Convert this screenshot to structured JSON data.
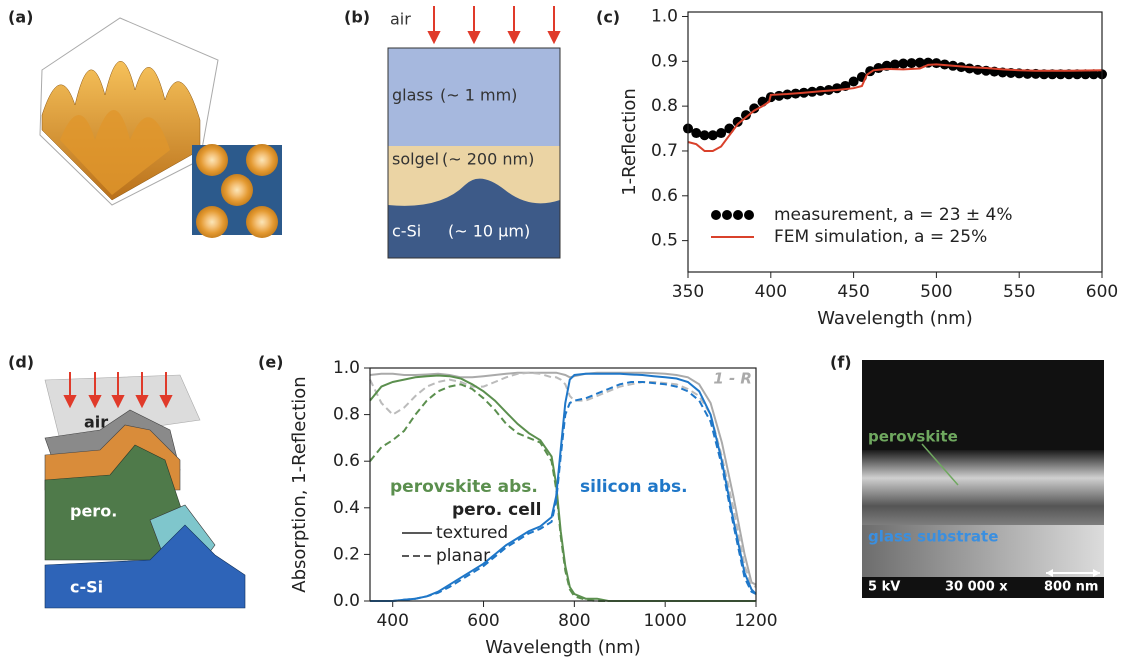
{
  "panel_labels": [
    "(a)",
    "(b)",
    "(c)",
    "(d)",
    "(e)",
    "(f)"
  ],
  "diagram_b": {
    "top_label": "air",
    "layers": [
      {
        "name": "glass",
        "thickness": "(~ 1 mm)"
      },
      {
        "name": "solgel",
        "thickness": "(~ 200 nm)"
      },
      {
        "name": "c-Si",
        "thickness": "(~ 10 µm)"
      }
    ]
  },
  "diagram_d": {
    "labels": [
      "air",
      "pero.",
      "c-Si"
    ]
  },
  "micrograph_f": {
    "labels": [
      "perovskite",
      "glass substrate"
    ],
    "footer": [
      "5 kV",
      "30 000 x",
      "800 nm"
    ]
  },
  "chart_data": [
    {
      "type": "line",
      "xlabel": "Wavelength (nm)",
      "ylabel": "1-Reflection",
      "xlim": [
        350,
        600
      ],
      "ylim": [
        0.43,
        1.01
      ],
      "xticks": [
        350,
        400,
        450,
        500,
        550,
        600
      ],
      "yticks": [
        0.5,
        0.6,
        0.7,
        0.8,
        0.9,
        {
          "value": 1.0,
          "label": "1.0"
        }
      ],
      "legend": "lower left",
      "series": [
        {
          "name": "measurement, a = 23 ± 4%",
          "color": "#000000",
          "markers": true,
          "x": [
            350,
            355,
            360,
            365,
            370,
            375,
            380,
            385,
            390,
            395,
            400,
            405,
            410,
            415,
            420,
            425,
            430,
            435,
            440,
            445,
            450,
            455,
            460,
            465,
            470,
            475,
            480,
            485,
            490,
            495,
            500,
            505,
            510,
            515,
            520,
            525,
            530,
            535,
            540,
            545,
            550,
            555,
            560,
            565,
            570,
            575,
            580,
            585,
            590,
            595,
            600
          ],
          "values": [
            0.75,
            0.74,
            0.735,
            0.735,
            0.74,
            0.75,
            0.765,
            0.78,
            0.795,
            0.81,
            0.82,
            0.823,
            0.826,
            0.828,
            0.83,
            0.832,
            0.834,
            0.836,
            0.84,
            0.845,
            0.855,
            0.865,
            0.878,
            0.885,
            0.89,
            0.893,
            0.895,
            0.896,
            0.897,
            0.897,
            0.896,
            0.893,
            0.89,
            0.887,
            0.884,
            0.881,
            0.879,
            0.877,
            0.875,
            0.874,
            0.873,
            0.872,
            0.872,
            0.871,
            0.871,
            0.871,
            0.871,
            0.871,
            0.871,
            0.871,
            0.871
          ]
        },
        {
          "name": "FEM simulation, a = 25%",
          "color": "#d9412b",
          "markers": false,
          "x": [
            350,
            355,
            360,
            365,
            370,
            375,
            380,
            385,
            390,
            395,
            399,
            400,
            410,
            420,
            430,
            440,
            450,
            455,
            458,
            462,
            470,
            480,
            490,
            495,
            500,
            510,
            520,
            530,
            540,
            550,
            560,
            580,
            600
          ],
          "values": [
            0.72,
            0.715,
            0.7,
            0.7,
            0.71,
            0.735,
            0.76,
            0.775,
            0.79,
            0.8,
            0.81,
            0.825,
            0.827,
            0.83,
            0.833,
            0.836,
            0.84,
            0.845,
            0.87,
            0.88,
            0.883,
            0.882,
            0.884,
            0.892,
            0.893,
            0.89,
            0.887,
            0.885,
            0.882,
            0.88,
            0.879,
            0.879,
            0.88
          ]
        }
      ]
    },
    {
      "type": "line",
      "xlabel": "Wavelength (nm)",
      "ylabel": "Absorption, 1-Reflection",
      "xlim": [
        350,
        1200
      ],
      "ylim": [
        0,
        1.0
      ],
      "xticks": [
        400,
        600,
        800,
        1000,
        1200
      ],
      "yticks": [
        {
          "value": 0,
          "label": "0.0"
        },
        0.2,
        0.4,
        0.6,
        0.8,
        {
          "value": 1.0,
          "label": "1.0"
        }
      ],
      "x": [
        350,
        375,
        400,
        425,
        450,
        475,
        500,
        525,
        550,
        575,
        600,
        625,
        650,
        675,
        700,
        725,
        750,
        760,
        770,
        780,
        790,
        800,
        825,
        850,
        875,
        900,
        925,
        950,
        975,
        1000,
        1025,
        1050,
        1075,
        1100,
        1125,
        1150,
        1175,
        1190,
        1200
      ],
      "series": [
        {
          "color": "#aaaaaa",
          "dashed": false,
          "values": [
            0.97,
            0.975,
            0.975,
            0.97,
            0.97,
            0.972,
            0.975,
            0.97,
            0.96,
            0.96,
            0.965,
            0.97,
            0.975,
            0.98,
            0.98,
            0.98,
            0.98,
            0.98,
            0.975,
            0.97,
            0.96,
            0.965,
            0.975,
            0.98,
            0.98,
            0.98,
            0.98,
            0.98,
            0.978,
            0.975,
            0.97,
            0.96,
            0.93,
            0.85,
            0.68,
            0.45,
            0.2,
            0.08,
            0.07
          ]
        },
        {
          "color": "#bbbbbb",
          "dashed": true,
          "values": [
            0.95,
            0.85,
            0.8,
            0.83,
            0.88,
            0.92,
            0.94,
            0.95,
            0.94,
            0.92,
            0.92,
            0.94,
            0.96,
            0.975,
            0.98,
            0.975,
            0.96,
            0.96,
            0.95,
            0.93,
            0.88,
            0.86,
            0.86,
            0.88,
            0.9,
            0.92,
            0.93,
            0.94,
            0.94,
            0.935,
            0.93,
            0.91,
            0.88,
            0.8,
            0.62,
            0.4,
            0.15,
            0.07,
            0.06
          ]
        },
        {
          "color": "#5b8f4e",
          "dashed": false,
          "values": [
            0.86,
            0.92,
            0.94,
            0.95,
            0.96,
            0.965,
            0.968,
            0.965,
            0.955,
            0.93,
            0.9,
            0.86,
            0.81,
            0.76,
            0.72,
            0.69,
            0.62,
            0.5,
            0.3,
            0.15,
            0.06,
            0.03,
            0.01,
            0.01,
            0,
            0,
            0,
            0,
            0,
            0,
            0,
            0,
            0,
            0,
            0,
            0,
            0,
            0,
            0
          ]
        },
        {
          "color": "#5b8f4e",
          "dashed": true,
          "values": [
            0.6,
            0.66,
            0.69,
            0.73,
            0.8,
            0.86,
            0.9,
            0.92,
            0.93,
            0.91,
            0.87,
            0.82,
            0.76,
            0.72,
            0.7,
            0.68,
            0.6,
            0.48,
            0.28,
            0.13,
            0.05,
            0.02,
            0.005,
            0,
            0,
            0,
            0,
            0,
            0,
            0,
            0,
            0,
            0,
            0,
            0,
            0,
            0,
            0,
            0
          ]
        },
        {
          "color": "#1f77c8",
          "dashed": false,
          "values": [
            0,
            0,
            0,
            0.005,
            0.01,
            0.02,
            0.04,
            0.07,
            0.1,
            0.13,
            0.16,
            0.2,
            0.24,
            0.27,
            0.3,
            0.32,
            0.36,
            0.45,
            0.65,
            0.85,
            0.95,
            0.97,
            0.975,
            0.975,
            0.975,
            0.975,
            0.972,
            0.97,
            0.965,
            0.96,
            0.955,
            0.94,
            0.9,
            0.8,
            0.6,
            0.35,
            0.12,
            0.05,
            0.03
          ]
        },
        {
          "color": "#1f77c8",
          "dashed": true,
          "values": [
            0,
            0,
            0,
            0.005,
            0.01,
            0.02,
            0.035,
            0.06,
            0.09,
            0.12,
            0.15,
            0.19,
            0.23,
            0.26,
            0.29,
            0.31,
            0.34,
            0.43,
            0.62,
            0.8,
            0.85,
            0.86,
            0.87,
            0.89,
            0.91,
            0.93,
            0.94,
            0.94,
            0.935,
            0.93,
            0.92,
            0.9,
            0.86,
            0.77,
            0.58,
            0.33,
            0.1,
            0.04,
            0.03
          ]
        }
      ],
      "legend": {
        "title": "pero. cell",
        "entries": [
          {
            "label": "textured",
            "dashed": false
          },
          {
            "label": "planar",
            "dashed": true
          }
        ]
      },
      "annotations": [
        {
          "text": "perovskite abs.",
          "color": "#5b8f4e"
        },
        {
          "text": "silicon abs.",
          "color": "#1f77c8"
        },
        {
          "text": "1 - R",
          "color": "#aaaaaa"
        }
      ]
    }
  ]
}
